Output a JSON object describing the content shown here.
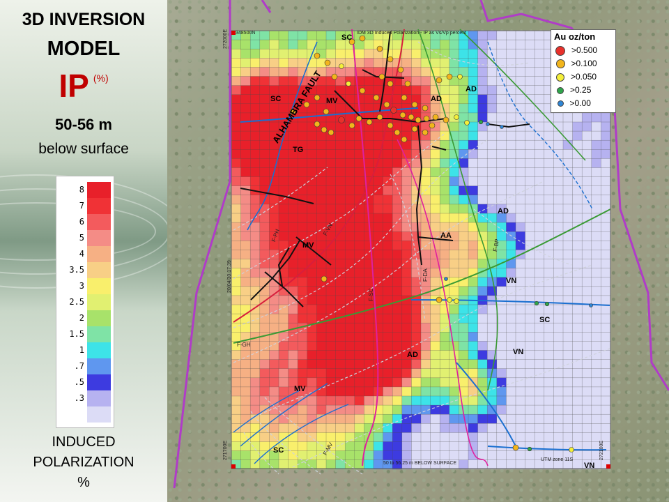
{
  "title": {
    "line1": "3D INVERSION",
    "line2": "MODEL",
    "ip": "IP",
    "ip_unit": "(%)",
    "depth": "50-56 m",
    "below": "below surface"
  },
  "color_scale": {
    "stops": [
      {
        "label": "8",
        "color": "#e8202a"
      },
      {
        "label": "7",
        "color": "#f03236"
      },
      {
        "label": "6",
        "color": "#f35b5d"
      },
      {
        "label": "5",
        "color": "#f48c86"
      },
      {
        "label": "4",
        "color": "#f6b084"
      },
      {
        "label": "3.5",
        "color": "#f8cf86"
      },
      {
        "label": "3",
        "color": "#f9ef6c"
      },
      {
        "label": "2.5",
        "color": "#e1f071"
      },
      {
        "label": "2",
        "color": "#a8e26a"
      },
      {
        "label": "1.5",
        "color": "#7fe3a6"
      },
      {
        "label": "1",
        "color": "#3de3e8"
      },
      {
        "label": ".7",
        "color": "#5f97ef"
      },
      {
        "label": ".5",
        "color": "#3d3be0"
      },
      {
        "label": ".3",
        "color": "#b6b2f0"
      },
      {
        "label": "",
        "color": "#dcdcf6"
      }
    ]
  },
  "caption": {
    "line1": "INDUCED",
    "line2": "POLARIZATION",
    "line3": "%"
  },
  "au_legend": {
    "title": "Au   oz/ton",
    "items": [
      {
        "label": ">0.500",
        "color": "#e8312b"
      },
      {
        "label": ">0.100",
        "color": "#f2b51c"
      },
      {
        "label": ">0.050",
        "color": "#f4ef3a"
      },
      {
        "label": ">0.25",
        "color": "#2fa54b"
      },
      {
        "label": ">0.00",
        "color": "#2f86d6"
      }
    ]
  },
  "map": {
    "header_text": "IDM 3D Induced Polarization - IP as Vs/Vp percent",
    "footer_text": "50 to 56.25 m BELOW SURFACE",
    "utm_text": "UTM zone 11S",
    "corner_tl": "348500N",
    "corner_tr": "272000E",
    "corner_bl": "271700E",
    "corner_br": "272100E",
    "left_vertical_text": "20/04/30 17:39",
    "labels": {
      "sc_top": "SC",
      "sc_left": "SC",
      "mv_top": "MV",
      "ad_top": "AD",
      "ad_right": "AD",
      "ad_upper": "AD",
      "ad_mid": "AD",
      "ad_low": "AD",
      "tg": "TG",
      "aa": "AA",
      "mv_mid": "MV",
      "vn_mid": "VN",
      "sc_right": "SC",
      "vn_low": "VN",
      "mv_low": "MV",
      "sc_low": "SC",
      "vn_corner": "VN",
      "alhambra": "ALHAMBRA FAULT",
      "fph": "F-PH",
      "fvn": "F-VN",
      "fsc": "F-SC",
      "fda": "F-DA",
      "fgh": "F-GH",
      "fbp": "F-BP",
      "fmv": "F-MV"
    }
  }
}
